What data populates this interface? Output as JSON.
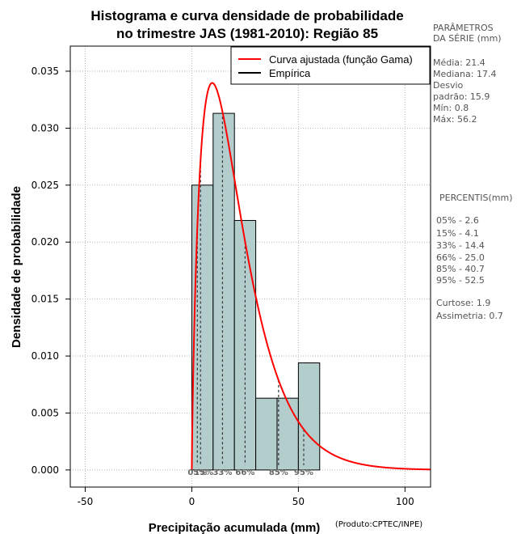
{
  "chart_data": {
    "type": "bar",
    "title_lines": [
      "Histograma e curva densidade de probabilidade",
      "no trimestre JAS (1981-2010): Região 85"
    ],
    "xlabel": "Precipitação acumulada (mm)",
    "ylabel": "Densidade de probabilidade",
    "credit": "(Produto:CPTEC/INPE)",
    "xlim": [
      -57,
      112
    ],
    "ylim": [
      -0.0015,
      0.0372
    ],
    "xticks": [
      -50,
      0,
      50,
      100
    ],
    "yticks": [
      0.0,
      0.005,
      0.01,
      0.015,
      0.02,
      0.025,
      0.03,
      0.035
    ],
    "ytick_labels": [
      "0.000",
      "0.005",
      "0.010",
      "0.015",
      "0.020",
      "0.025",
      "0.030",
      "0.035"
    ],
    "grid": true,
    "bins": [
      {
        "start": 0,
        "end": 10,
        "density": 0.025
      },
      {
        "start": 10,
        "end": 20,
        "density": 0.0313
      },
      {
        "start": 20,
        "end": 30,
        "density": 0.0219
      },
      {
        "start": 30,
        "end": 40,
        "density": 0.0063
      },
      {
        "start": 40,
        "end": 50,
        "density": 0.0063
      },
      {
        "start": 50,
        "end": 60,
        "density": 0.0094
      }
    ],
    "bar_color": "#b3cccc",
    "curve_color": "#ff0000",
    "gamma_fit": {
      "shape": 1.81,
      "rate": 0.0846
    },
    "legend": [
      {
        "label": "Curva ajustada (função Gama)",
        "color": "#ff0000"
      },
      {
        "label": "Empírica",
        "color": "#000000"
      }
    ],
    "percentile_markers": [
      {
        "label": "05%",
        "x": 2.6
      },
      {
        "label": "15%",
        "x": 4.1
      },
      {
        "label": "33%",
        "x": 14.4
      },
      {
        "label": "66%",
        "x": 25.0
      },
      {
        "label": "85%",
        "x": 40.7
      },
      {
        "label": "95%",
        "x": 52.5
      }
    ]
  },
  "side_panel": {
    "params_heading": [
      "PARÂMETROS",
      " DA SÉRIE (mm)"
    ],
    "params": [
      "Média:  21.4",
      "Mediana:  17.4",
      "Desvio",
      "padrão:  15.9",
      "Mín:  0.8",
      "Máx:  56.2"
    ],
    "percentis_heading": "PERCENTIS(mm)",
    "percentis": [
      "05% -   2.6",
      "15% -   4.1",
      "33% -  14.4",
      "66% -  25.0",
      "85% -  40.7",
      "95% -   52.5"
    ],
    "stats": [
      "Curtose:  1.9",
      "Assimetria:  0.7"
    ]
  }
}
